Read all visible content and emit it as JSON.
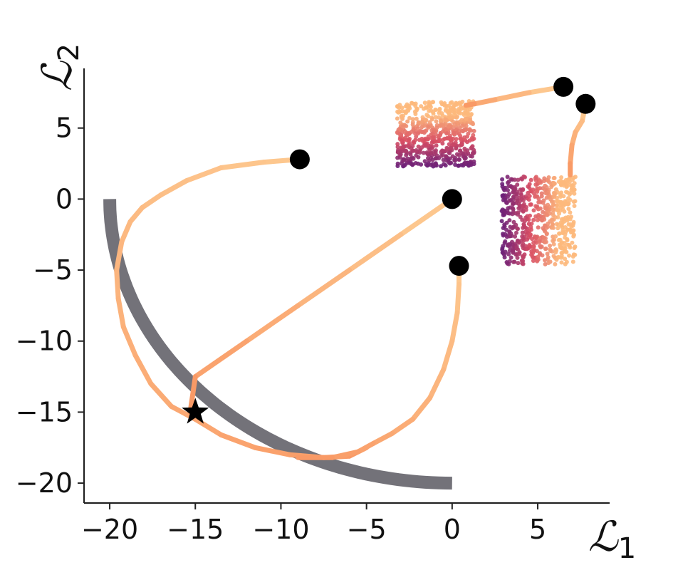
{
  "chart_data": {
    "type": "scatter",
    "xlim": [
      -21.5,
      9.2
    ],
    "ylim": [
      -21.4,
      9.2
    ],
    "xticks": [
      -20,
      -15,
      -10,
      -5,
      0,
      5
    ],
    "yticks": [
      -20,
      -15,
      -10,
      -5,
      0,
      5
    ],
    "xtick_labels": [
      "−20",
      "−15",
      "−10",
      "−5",
      "0",
      "5"
    ],
    "ytick_labels": [
      "−20",
      "−15",
      "−10",
      "−5",
      "0",
      "5"
    ],
    "xlabel": "𝓛₁",
    "ylabel": "𝓛₂",
    "xlabel_main": "ℒ",
    "xlabel_sub": "1",
    "ylabel_main": "ℒ",
    "ylabel_sub": "2",
    "grid": false,
    "colors": {
      "pareto_front": "#737279",
      "trajectory_light": "#FDC78E",
      "trajectory_mid": "#F99A66",
      "trajectory_dark": "#F0765B",
      "cloud_dark": "#6A1F78",
      "cloud_mid": "#D74C63",
      "cloud_light": "#FDB97C",
      "marker": "#000000"
    },
    "pareto_front": {
      "shape": "quarter-circle",
      "center": [
        0,
        0
      ],
      "radius": 20,
      "x_range": [
        -20,
        0
      ]
    },
    "start_points": [
      {
        "x": -8.9,
        "y": 2.8
      },
      {
        "x": 0.0,
        "y": 0.0
      },
      {
        "x": 0.4,
        "y": -4.7
      },
      {
        "x": 6.5,
        "y": 7.9
      },
      {
        "x": 7.8,
        "y": 6.7
      }
    ],
    "target_point": {
      "x": -15.0,
      "y": -15.0,
      "marker": "star"
    },
    "trajectories": [
      {
        "points": [
          [
            -8.9,
            2.8
          ],
          [
            -11.0,
            2.6
          ],
          [
            -13.5,
            2.2
          ],
          [
            -15.5,
            1.3
          ],
          [
            -17.0,
            0.3
          ],
          [
            -18.1,
            -0.6
          ],
          [
            -18.8,
            -1.6
          ],
          [
            -19.3,
            -3.0
          ],
          [
            -19.6,
            -5.0
          ],
          [
            -19.5,
            -7.0
          ],
          [
            -19.2,
            -9.0
          ],
          [
            -18.5,
            -11.0
          ],
          [
            -17.6,
            -13.0
          ],
          [
            -16.4,
            -14.6
          ],
          [
            -15.0,
            -15.5
          ],
          [
            -13.5,
            -16.6
          ],
          [
            -11.5,
            -17.5
          ],
          [
            -9.5,
            -18.0
          ],
          [
            -7.5,
            -18.2
          ],
          [
            -6.0,
            -18.1
          ],
          [
            -5.0,
            -17.5
          ]
        ]
      },
      {
        "points": [
          [
            0.0,
            0.0
          ],
          [
            -3.0,
            -2.5
          ],
          [
            -6.0,
            -5.0
          ],
          [
            -9.0,
            -7.5
          ],
          [
            -12.0,
            -10.0
          ],
          [
            -15.0,
            -12.5
          ],
          [
            -15.3,
            -15.0
          ]
        ]
      },
      {
        "points": [
          [
            0.4,
            -4.7
          ],
          [
            0.4,
            -6.0
          ],
          [
            0.3,
            -8.0
          ],
          [
            0.0,
            -10.0
          ],
          [
            -0.5,
            -12.0
          ],
          [
            -1.3,
            -14.0
          ],
          [
            -2.3,
            -15.5
          ],
          [
            -3.5,
            -16.5
          ],
          [
            -4.6,
            -17.2
          ],
          [
            -5.5,
            -17.8
          ],
          [
            -7.0,
            -18.2
          ],
          [
            -9.0,
            -18.2
          ]
        ]
      },
      {
        "points": [
          [
            6.5,
            7.9
          ],
          [
            4.5,
            7.5
          ],
          [
            2.5,
            7.0
          ],
          [
            1.3,
            6.7
          ],
          [
            0.8,
            6.6
          ]
        ]
      },
      {
        "points": [
          [
            7.8,
            6.7
          ],
          [
            7.6,
            5.5
          ],
          [
            7.2,
            4.7
          ],
          [
            7.0,
            3.8
          ],
          [
            6.9,
            2.5
          ],
          [
            6.9,
            1.7
          ]
        ]
      }
    ],
    "point_clouds": [
      {
        "x_range": [
          -3.2,
          1.3
        ],
        "y_range": [
          2.3,
          6.9
        ],
        "gradient_axis": "y",
        "gradient": "dark-bottom",
        "count": 600
      },
      {
        "x_range": [
          2.9,
          7.2
        ],
        "y_range": [
          -4.6,
          1.6
        ],
        "gradient_axis": "x",
        "gradient": "dark-left",
        "count": 600
      }
    ]
  }
}
